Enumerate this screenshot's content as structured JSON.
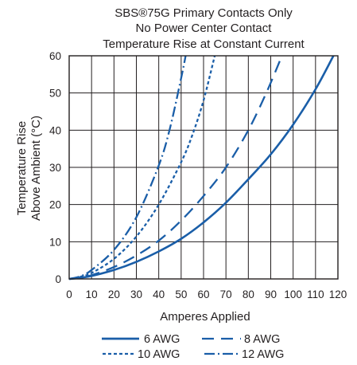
{
  "chart_data": {
    "type": "line",
    "title_lines": [
      "SBS®75G Primary Contacts Only",
      "No Power Center Contact",
      "Temperature Rise at Constant Current"
    ],
    "xlabel": "Amperes Applied",
    "ylabel_lines": [
      "Temperature Rise",
      "Above Ambient (°C)"
    ],
    "xlim": [
      0,
      120
    ],
    "ylim": [
      0,
      60
    ],
    "xticks": [
      0,
      10,
      20,
      30,
      40,
      50,
      60,
      70,
      80,
      90,
      100,
      110,
      120
    ],
    "yticks": [
      0,
      10,
      20,
      30,
      40,
      50,
      60
    ],
    "grid": true,
    "legend_position": "bottom",
    "line_color": "#1a5ea8",
    "series": [
      {
        "name": "6 AWG",
        "dash": "solid",
        "x": [
          0,
          5,
          10,
          20,
          30,
          40,
          50,
          60,
          70,
          80,
          90,
          100,
          110,
          118
        ],
        "y": [
          0,
          0.3,
          0.8,
          2.4,
          4.6,
          7.4,
          10.8,
          15.2,
          20.5,
          26.8,
          33.5,
          41.5,
          51,
          60
        ]
      },
      {
        "name": "8 AWG",
        "dash": "long-dash",
        "x": [
          0,
          5,
          10,
          20,
          30,
          40,
          50,
          60,
          70,
          80,
          88,
          95
        ],
        "y": [
          0,
          0.4,
          1.0,
          3.2,
          6.3,
          10.3,
          15.7,
          22.3,
          30.0,
          40.0,
          50.0,
          60.0
        ]
      },
      {
        "name": "10 AWG",
        "dash": "short-dash",
        "x": [
          0,
          5,
          10,
          20,
          30,
          40,
          50,
          55,
          60,
          65
        ],
        "y": [
          0,
          0.6,
          1.6,
          5.4,
          11.4,
          20.0,
          31.4,
          38.7,
          48.0,
          60.0
        ]
      },
      {
        "name": "12 AWG",
        "dash": "dash-dot",
        "x": [
          0,
          5,
          10,
          20,
          30,
          40,
          45,
          50,
          52
        ],
        "y": [
          0,
          0.7,
          2.4,
          7.8,
          16.6,
          30.5,
          40.5,
          54.0,
          60.0
        ]
      }
    ]
  }
}
